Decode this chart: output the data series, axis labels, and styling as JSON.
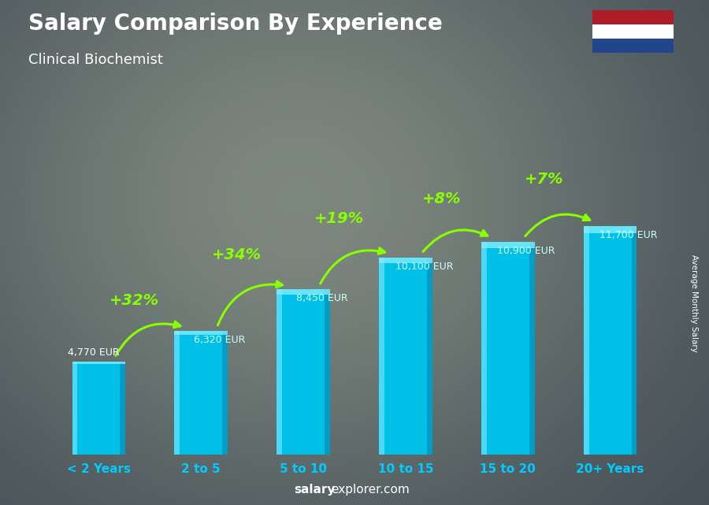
{
  "title": "Salary Comparison By Experience",
  "subtitle": "Clinical Biochemist",
  "categories": [
    "< 2 Years",
    "2 to 5",
    "5 to 10",
    "10 to 15",
    "15 to 20",
    "20+ Years"
  ],
  "values": [
    4770,
    6320,
    8450,
    10100,
    10900,
    11700
  ],
  "value_labels": [
    "4,770 EUR",
    "6,320 EUR",
    "8,450 EUR",
    "10,100 EUR",
    "10,900 EUR",
    "11,700 EUR"
  ],
  "pct_changes": [
    null,
    "+32%",
    "+34%",
    "+19%",
    "+8%",
    "+7%"
  ],
  "bar_color_main": "#00C0E8",
  "bar_color_left": "#50DEFF",
  "bar_color_right": "#0090B8",
  "bar_color_top": "#80EEFF",
  "pct_color": "#88FF00",
  "value_label_color": "#CCFFFF",
  "first_label_color": "#FFFFFF",
  "title_color": "#FFFFFF",
  "subtitle_color": "#FFFFFF",
  "cat_label_color": "#00CCFF",
  "bg_color": "#2a3a4a",
  "overlay_color": "#1a2535",
  "ylabel_text": "Average Monthly Salary",
  "footer_salary": "salary",
  "footer_rest": "explorer.com",
  "ylim": [
    0,
    15000
  ],
  "bar_width": 0.52,
  "fig_width": 9.0,
  "fig_height": 6.41,
  "flag_red": "#AE1C28",
  "flag_white": "#FFFFFF",
  "flag_blue": "#21468B"
}
